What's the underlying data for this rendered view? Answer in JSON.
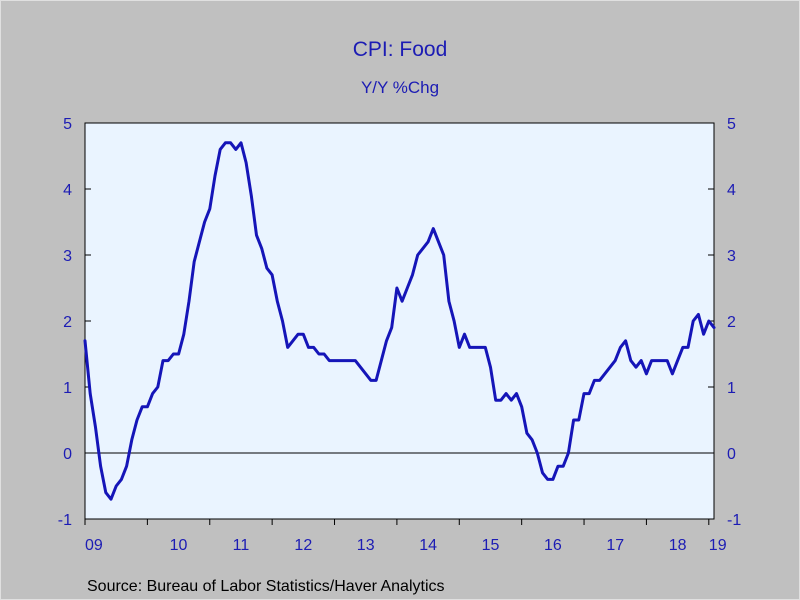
{
  "chart_data": {
    "type": "line",
    "title": "CPI: Food",
    "subtitle": "Y/Y %Chg",
    "source": "Source:  Bureau of Labor Statistics/Haver Analytics",
    "xlabel": "",
    "ylabel": "",
    "ylim": [
      -1,
      5
    ],
    "y_ticks": [
      "-1",
      "0",
      "1",
      "2",
      "3",
      "4",
      "5"
    ],
    "y_tick_values": [
      -1,
      0,
      1,
      2,
      3,
      4,
      5
    ],
    "x_ticks": [
      "09",
      "10",
      "11",
      "12",
      "13",
      "14",
      "15",
      "16",
      "17",
      "18",
      "19"
    ],
    "x_range": [
      "2009-01",
      "2019-02"
    ],
    "x_tick_dates": [
      "2009-01",
      "2010-01",
      "2011-01",
      "2012-01",
      "2013-01",
      "2014-01",
      "2015-01",
      "2016-01",
      "2017-01",
      "2018-01",
      "2019-01"
    ],
    "zero_line": true,
    "grid": false,
    "colors": {
      "line": "#1515b8",
      "background": "#c0c0c0",
      "plot_area": "#eaf4ff",
      "text": "#1c1cb4"
    },
    "series": [
      {
        "name": "",
        "x": [
          "2009-01",
          "2009-02",
          "2009-03",
          "2009-04",
          "2009-05",
          "2009-06",
          "2009-07",
          "2009-08",
          "2009-09",
          "2009-10",
          "2009-11",
          "2009-12",
          "2010-01",
          "2010-02",
          "2010-03",
          "2010-04",
          "2010-05",
          "2010-06",
          "2010-07",
          "2010-08",
          "2010-09",
          "2010-10",
          "2010-11",
          "2010-12",
          "2011-01",
          "2011-02",
          "2011-03",
          "2011-04",
          "2011-05",
          "2011-06",
          "2011-07",
          "2011-08",
          "2011-09",
          "2011-10",
          "2011-11",
          "2011-12",
          "2012-01",
          "2012-02",
          "2012-03",
          "2012-04",
          "2012-05",
          "2012-06",
          "2012-07",
          "2012-08",
          "2012-09",
          "2012-10",
          "2012-11",
          "2012-12",
          "2013-01",
          "2013-02",
          "2013-03",
          "2013-04",
          "2013-05",
          "2013-06",
          "2013-07",
          "2013-08",
          "2013-09",
          "2013-10",
          "2013-11",
          "2013-12",
          "2014-01",
          "2014-02",
          "2014-03",
          "2014-04",
          "2014-05",
          "2014-06",
          "2014-07",
          "2014-08",
          "2014-09",
          "2014-10",
          "2014-11",
          "2014-12",
          "2015-01",
          "2015-02",
          "2015-03",
          "2015-04",
          "2015-05",
          "2015-06",
          "2015-07",
          "2015-08",
          "2015-09",
          "2015-10",
          "2015-11",
          "2015-12",
          "2016-01",
          "2016-02",
          "2016-03",
          "2016-04",
          "2016-05",
          "2016-06",
          "2016-07",
          "2016-08",
          "2016-09",
          "2016-10",
          "2016-11",
          "2016-12",
          "2017-01",
          "2017-02",
          "2017-03",
          "2017-04",
          "2017-05",
          "2017-06",
          "2017-07",
          "2017-08",
          "2017-09",
          "2017-10",
          "2017-11",
          "2017-12",
          "2018-01",
          "2018-02",
          "2018-03",
          "2018-04",
          "2018-05",
          "2018-06",
          "2018-07",
          "2018-08",
          "2018-09",
          "2018-10",
          "2018-11",
          "2018-12",
          "2019-01",
          "2019-02"
        ],
        "values": [
          1.7,
          0.9,
          0.4,
          -0.2,
          -0.6,
          -0.7,
          -0.5,
          -0.4,
          -0.2,
          0.2,
          0.5,
          0.7,
          0.7,
          0.9,
          1.0,
          1.4,
          1.4,
          1.5,
          1.5,
          1.8,
          2.3,
          2.9,
          3.2,
          3.5,
          3.7,
          4.2,
          4.6,
          4.7,
          4.7,
          4.6,
          4.7,
          4.4,
          3.9,
          3.3,
          3.1,
          2.8,
          2.7,
          2.3,
          2.0,
          1.6,
          1.7,
          1.8,
          1.8,
          1.6,
          1.6,
          1.5,
          1.5,
          1.4,
          1.4,
          1.4,
          1.4,
          1.4,
          1.4,
          1.3,
          1.2,
          1.1,
          1.1,
          1.4,
          1.7,
          1.9,
          2.5,
          2.3,
          2.5,
          2.7,
          3.0,
          3.1,
          3.2,
          3.4,
          3.2,
          3.0,
          2.3,
          2.0,
          1.6,
          1.8,
          1.6,
          1.6,
          1.6,
          1.6,
          1.3,
          0.8,
          0.8,
          0.9,
          0.8,
          0.9,
          0.7,
          0.3,
          0.2,
          0.0,
          -0.3,
          -0.4,
          -0.4,
          -0.2,
          -0.2,
          0.0,
          0.5,
          0.5,
          0.9,
          0.9,
          1.1,
          1.1,
          1.2,
          1.3,
          1.4,
          1.6,
          1.7,
          1.4,
          1.3,
          1.4,
          1.2,
          1.4,
          1.4,
          1.4,
          1.4,
          1.2,
          1.4,
          1.6,
          1.6,
          2.0,
          2.1,
          1.8,
          2.0,
          1.9
        ]
      }
    ]
  }
}
